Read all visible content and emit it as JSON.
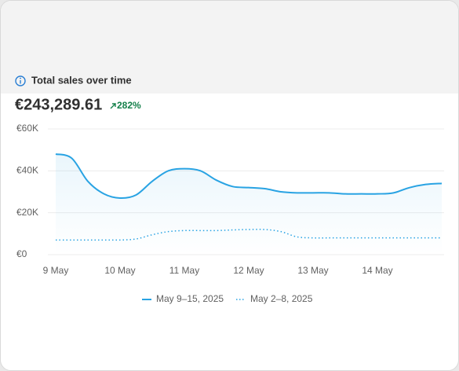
{
  "chart_data": {
    "type": "line",
    "title": "Total sales over time",
    "total": "€243,289.61",
    "change": "282%",
    "categories": [
      "9 May",
      null,
      null,
      null,
      "10 May",
      null,
      null,
      null,
      "11 May",
      null,
      null,
      null,
      "12 May",
      null,
      null,
      null,
      "13 May",
      null,
      null,
      null,
      "14 May",
      null,
      null,
      null,
      null
    ],
    "series": [
      {
        "name": "May 9–15, 2025",
        "color": "#29a3e3",
        "style": "solid",
        "values": [
          48000,
          46000,
          35000,
          29000,
          27000,
          28500,
          35000,
          40000,
          41000,
          40000,
          35500,
          32500,
          32000,
          31500,
          30000,
          29500,
          29500,
          29500,
          29000,
          29000,
          29000,
          29500,
          32000,
          33500,
          34000
        ]
      },
      {
        "name": "May 2–8, 2025",
        "color": "#29a3e3",
        "style": "dotted",
        "values": [
          7000,
          7000,
          7000,
          7000,
          7000,
          7500,
          9500,
          11000,
          11500,
          11500,
          11500,
          11800,
          12000,
          12000,
          11000,
          8500,
          8000,
          8000,
          8000,
          8000,
          8000,
          8000,
          8000,
          8000,
          8000
        ]
      }
    ],
    "ylim": [
      0,
      60000
    ],
    "yticks": [
      {
        "value": 0,
        "label": "€0"
      },
      {
        "value": 20000,
        "label": "€20K"
      },
      {
        "value": 40000,
        "label": "€40K"
      },
      {
        "value": 60000,
        "label": "€60K"
      }
    ],
    "grid": true,
    "legend": "bottom"
  }
}
